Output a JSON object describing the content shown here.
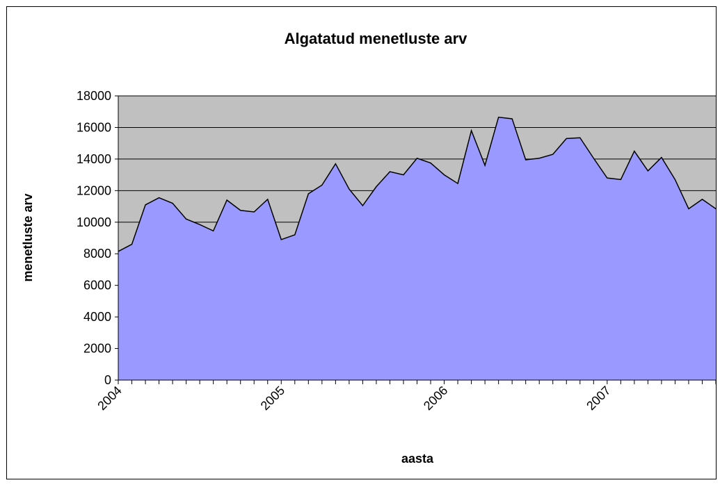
{
  "chart_data": {
    "type": "area",
    "title": "Algatatud menetluste arv",
    "xlabel": "aasta",
    "ylabel": "menetluste arv",
    "categories": [
      "2004",
      null,
      null,
      null,
      null,
      null,
      null,
      null,
      null,
      null,
      null,
      null,
      "2005",
      null,
      null,
      null,
      null,
      null,
      null,
      null,
      null,
      null,
      null,
      null,
      "2006",
      null,
      null,
      null,
      null,
      null,
      null,
      null,
      null,
      null,
      null,
      null,
      "2007",
      null,
      null,
      null,
      null,
      null,
      null,
      null,
      null
    ],
    "values": [
      8150,
      8600,
      11100,
      11550,
      11200,
      10200,
      9850,
      9450,
      11400,
      10750,
      10650,
      11450,
      8900,
      9200,
      11800,
      12350,
      13700,
      12100,
      11050,
      12250,
      13200,
      13000,
      14050,
      13750,
      13000,
      12450,
      15800,
      13600,
      16650,
      16550,
      13950,
      14050,
      14300,
      15300,
      15350,
      14050,
      12800,
      12700,
      14500,
      13250,
      14100,
      12700,
      10850,
      11450,
      10850
    ],
    "color": "#9999ff",
    "line_color": "#000000",
    "plot_background": "#c0c0c0",
    "ylim": [
      0,
      18000
    ],
    "yticks": [
      0,
      2000,
      4000,
      6000,
      8000,
      10000,
      12000,
      14000,
      16000,
      18000
    ],
    "grid": true
  }
}
